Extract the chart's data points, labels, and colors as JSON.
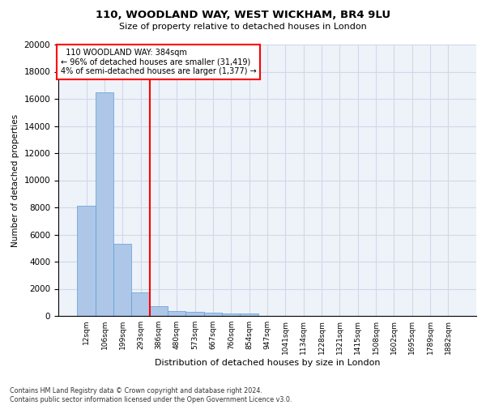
{
  "title_line1": "110, WOODLAND WAY, WEST WICKHAM, BR4 9LU",
  "title_line2": "Size of property relative to detached houses in London",
  "xlabel": "Distribution of detached houses by size in London",
  "ylabel": "Number of detached properties",
  "footnote": "Contains HM Land Registry data © Crown copyright and database right 2024.\nContains public sector information licensed under the Open Government Licence v3.0.",
  "categories": [
    "12sqm",
    "106sqm",
    "199sqm",
    "293sqm",
    "386sqm",
    "480sqm",
    "573sqm",
    "667sqm",
    "760sqm",
    "854sqm",
    "947sqm",
    "1041sqm",
    "1134sqm",
    "1228sqm",
    "1321sqm",
    "1415sqm",
    "1508sqm",
    "1602sqm",
    "1695sqm",
    "1789sqm",
    "1882sqm"
  ],
  "values": [
    8100,
    16500,
    5300,
    1750,
    700,
    350,
    270,
    230,
    200,
    190,
    0,
    0,
    0,
    0,
    0,
    0,
    0,
    0,
    0,
    0,
    0
  ],
  "bar_color": "#aec6e8",
  "bar_edge_color": "#5a9fd4",
  "annotation_text": "  110 WOODLAND WAY: 384sqm\n← 96% of detached houses are smaller (31,419)\n4% of semi-detached houses are larger (1,377) →",
  "annotation_box_color": "white",
  "annotation_box_edge_color": "red",
  "vline_x_index": 3.5,
  "vline_color": "red",
  "ylim": [
    0,
    20000
  ],
  "yticks": [
    0,
    2000,
    4000,
    6000,
    8000,
    10000,
    12000,
    14000,
    16000,
    18000,
    20000
  ],
  "grid_color": "#d0d8e8",
  "background_color": "#eef2f9"
}
